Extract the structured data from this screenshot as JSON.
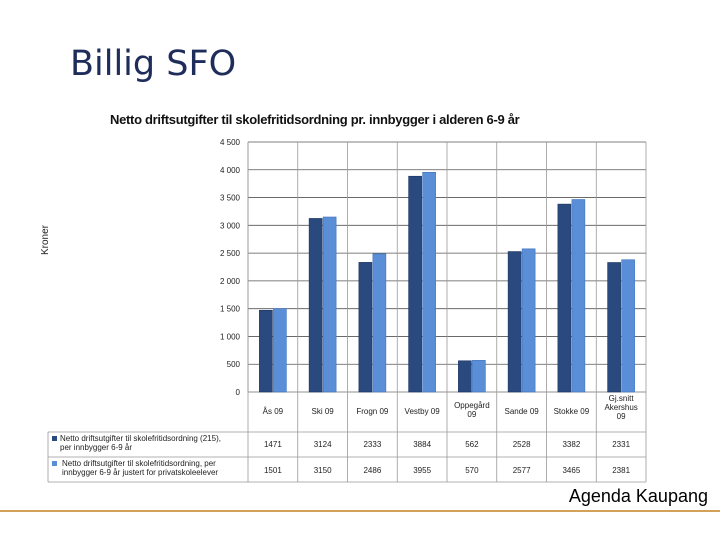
{
  "slide": {
    "title": "Billig SFO",
    "footer": "Agenda Kaupang"
  },
  "colors": {
    "series1": "#2a4a7f",
    "series2": "#5a8ed6",
    "footer_line": "#d4a15a"
  },
  "chart_data": {
    "type": "bar",
    "title": "Netto driftsutgifter til skolefritidsordning pr. innbygger i alderen 6-9 år",
    "ylabel": "Kroner",
    "ylim": [
      0,
      4500
    ],
    "yticks": [
      "0",
      "500",
      "1 000",
      "1 500",
      "2 000",
      "2 500",
      "3 000",
      "3 500",
      "4 000",
      "4 500"
    ],
    "grid": true,
    "legend_placement": "bottom-left data table",
    "categories": [
      [
        "Ås 09"
      ],
      [
        "Ski 09"
      ],
      [
        "Frogn 09"
      ],
      [
        "Vestby 09"
      ],
      [
        "Oppegård",
        "09"
      ],
      [
        "Sande 09"
      ],
      [
        "Stokke 09"
      ],
      [
        "Gj.snitt",
        "Akershus",
        "09"
      ]
    ],
    "series": [
      {
        "legend_lines": [
          "Netto driftsutgifter til skolefritidsordning (215),",
          "per innbygger 6-9 år"
        ],
        "values": [
          1471,
          3124,
          2333,
          3884,
          562,
          2528,
          3382,
          2331
        ]
      },
      {
        "legend_lines": [
          "Netto driftsutgifter til skolefritidsordning, per",
          "innbygger 6-9 år  justert for privatskoleelever"
        ],
        "values": [
          1501,
          3150,
          2486,
          3955,
          570,
          2577,
          3465,
          2381
        ]
      }
    ]
  }
}
